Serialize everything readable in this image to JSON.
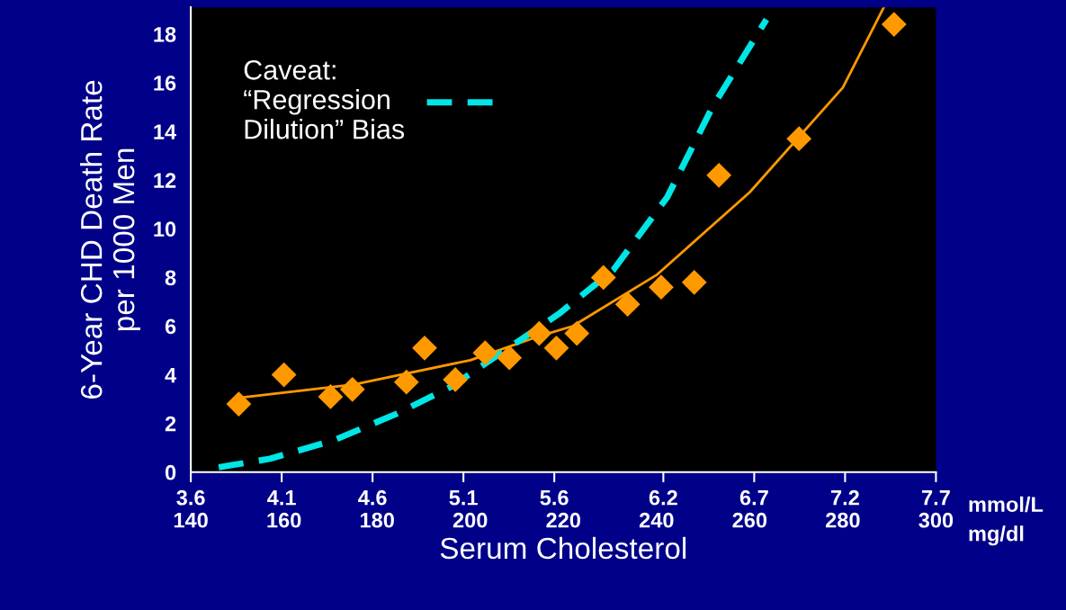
{
  "chart_data": {
    "type": "scatter",
    "xlabel": "Serum Cholesterol",
    "ylabel": "6-Year CHD Death Rate\nper 1000 Men",
    "xlim": [
      140,
      300
    ],
    "ylim": [
      0,
      19.1
    ],
    "xticks": [
      140,
      160,
      180,
      200,
      220,
      240,
      260,
      280,
      300
    ],
    "x2lim": [
      3.6,
      7.7
    ],
    "x2ticks": [
      3.6,
      4.1,
      4.6,
      5.1,
      5.6,
      6.2,
      6.7,
      7.2,
      7.7
    ],
    "yticks": [
      0,
      2,
      4,
      6,
      8,
      10,
      12,
      14,
      16,
      18
    ],
    "annotations": [
      "mmol/L",
      "mg/dl"
    ],
    "grid": false,
    "legend": "top left",
    "series": [
      {
        "color": "#ff9900",
        "marker": "diamond",
        "x": [
          150.3,
          160,
          170,
          174.7,
          186.3,
          190.2,
          196.8,
          203.2,
          208.4,
          214.8,
          218.5,
          222.9,
          228.6,
          233.8,
          241,
          248.1,
          253.4,
          270.6,
          291
        ],
        "values": [
          2.8,
          4.0,
          3.1,
          3.4,
          3.7,
          5.1,
          3.8,
          4.9,
          4.7,
          5.7,
          5.1,
          5.7,
          8.0,
          6.9,
          7.6,
          7.8,
          12.2,
          13.7,
          18.4
        ]
      },
      {
        "type": "line",
        "color": "#ff9900",
        "line_style": "solid",
        "x": [
          150,
          175,
          200,
          215,
          222,
          240,
          260,
          280,
          288.8
        ],
        "values": [
          3.05,
          3.6,
          4.6,
          5.6,
          6.0,
          8.1,
          11.5,
          15.8,
          19.1
        ]
      },
      {
        "type": "line",
        "color": "#00e5e5",
        "line_style": "dashed",
        "name": "Caveat:\n“Regression\nDilution” Bias",
        "x": [
          146,
          157,
          170.6,
          184.2,
          195.8,
          207.4,
          219,
          230.7,
          242.3,
          252,
          263.6
        ],
        "values": [
          0.2,
          0.55,
          1.3,
          2.4,
          3.5,
          5.0,
          6.5,
          8.3,
          11.3,
          15.0,
          18.6
        ]
      }
    ]
  }
}
